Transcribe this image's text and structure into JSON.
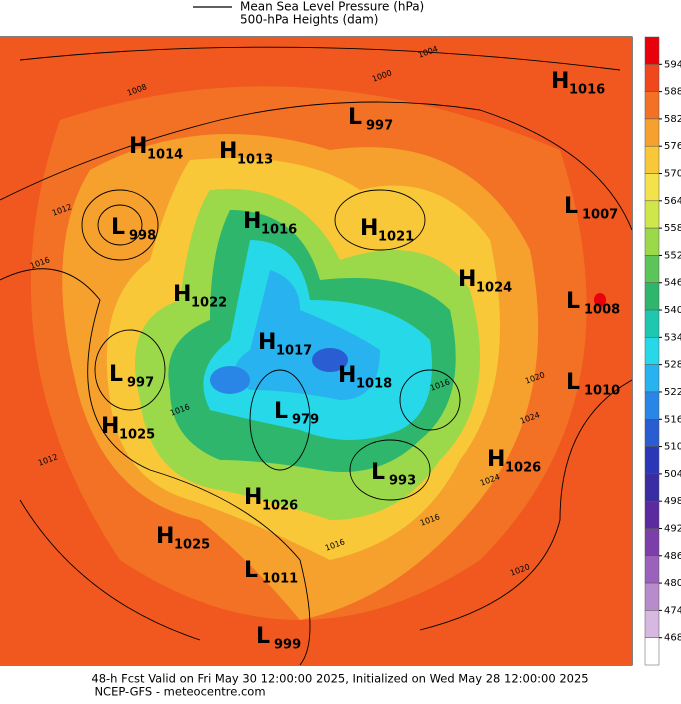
{
  "legend": {
    "line_label": "Mean Sea Level Pressure (hPa)",
    "fill_label": "500-hPa Heights (dam)"
  },
  "pressure_centers": [
    {
      "type": "H",
      "value": "1016"
    },
    {
      "type": "L",
      "value": "997"
    },
    {
      "type": "H",
      "value": "1014"
    },
    {
      "type": "H",
      "value": "1013"
    },
    {
      "type": "L",
      "value": "998"
    },
    {
      "type": "H",
      "value": "1016"
    },
    {
      "type": "H",
      "value": "1021"
    },
    {
      "type": "L",
      "value": "1007"
    },
    {
      "type": "H",
      "value": "1024"
    },
    {
      "type": "H",
      "value": "1022"
    },
    {
      "type": "L",
      "value": "1008"
    },
    {
      "type": "H",
      "value": "1017"
    },
    {
      "type": "L",
      "value": "997"
    },
    {
      "type": "H",
      "value": "1018"
    },
    {
      "type": "L",
      "value": "1010"
    },
    {
      "type": "H",
      "value": "1025"
    },
    {
      "type": "L",
      "value": "979"
    },
    {
      "type": "H",
      "value": "1026"
    },
    {
      "type": "L",
      "value": "993"
    },
    {
      "type": "H",
      "value": "1026"
    },
    {
      "type": "H",
      "value": "1025"
    },
    {
      "type": "L",
      "value": "1011"
    },
    {
      "type": "L",
      "value": "999"
    }
  ],
  "contour_labels": [
    "1004",
    "1000",
    "1008",
    "1012",
    "1016",
    "1016",
    "1012",
    "1020",
    "1024",
    "1016",
    "1016",
    "1020",
    "1024",
    "1016"
  ],
  "colorbar": {
    "ticks": [
      594,
      588,
      582,
      576,
      570,
      564,
      558,
      552,
      546,
      540,
      534,
      528,
      522,
      516,
      510,
      504,
      498,
      492,
      486,
      480,
      474,
      468
    ],
    "colors": [
      "#e8000b",
      "#f0471c",
      "#f27124",
      "#f6a02e",
      "#f9c838",
      "#f4e24a",
      "#cfe74a",
      "#9bd94b",
      "#5cc55a",
      "#2eb66c",
      "#1ec8b0",
      "#26d8e8",
      "#28b2f0",
      "#2a86e6",
      "#2a5cd2",
      "#2a38b8",
      "#3a2ca2",
      "#5a2a9e",
      "#7c3ea8",
      "#9a62ba",
      "#b88ccc",
      "#d6b8e0",
      "#ffffff"
    ]
  },
  "footer": {
    "line1": "48-h Fcst Valid on Fri May 30 12:00:00 2025, Initialized on Wed May 28 12:00:00 2025",
    "line2": "NCEP-GFS  -  meteocentre.com"
  }
}
